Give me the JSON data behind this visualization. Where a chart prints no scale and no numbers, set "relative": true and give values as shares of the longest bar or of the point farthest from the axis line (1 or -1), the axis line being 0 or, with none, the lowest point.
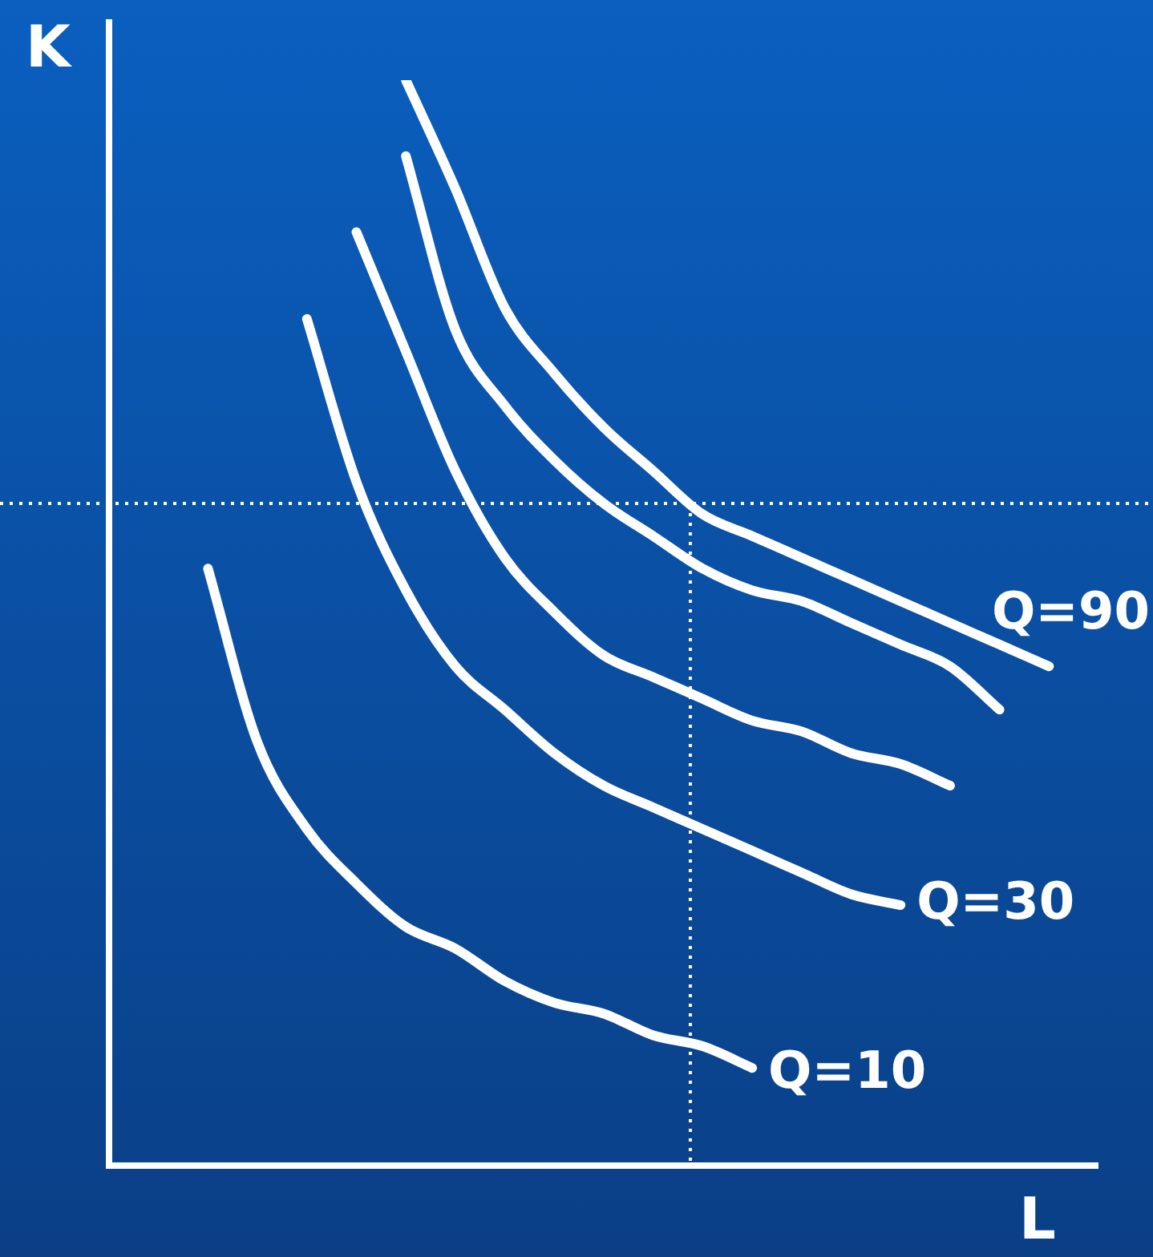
{
  "chart_data": {
    "type": "line",
    "relative": true,
    "xlabel": "L",
    "ylabel": "K",
    "legend": false,
    "marker": "none",
    "line_style": "solid",
    "categories": [
      null,
      null,
      null,
      null,
      null,
      null,
      null,
      null,
      null,
      null,
      null,
      null,
      null,
      null,
      null,
      null,
      null,
      null,
      null,
      null,
      null
    ],
    "series": [
      {
        "name": "Q=10",
        "color": "#ffffff",
        "values": [
          null,
          null,
          0.55,
          0.39,
          0.31,
          0.26,
          0.22,
          0.2,
          0.17,
          0.15,
          0.14,
          0.12,
          0.11,
          0.09,
          null,
          null,
          null,
          null,
          null,
          null,
          null
        ]
      },
      {
        "name": "Q=30",
        "color": "#ffffff",
        "values": [
          null,
          null,
          null,
          null,
          0.78,
          0.63,
          0.53,
          0.46,
          0.42,
          0.38,
          0.35,
          0.33,
          0.31,
          0.29,
          0.27,
          0.25,
          0.24,
          null,
          null,
          null,
          null
        ]
      },
      {
        "color": "#ffffff",
        "values": [
          null,
          null,
          null,
          null,
          null,
          0.86,
          0.75,
          0.64,
          0.56,
          0.51,
          0.47,
          0.45,
          0.43,
          0.41,
          0.4,
          0.38,
          0.37,
          0.35,
          null,
          null,
          null
        ]
      },
      {
        "color": "#ffffff",
        "values": [
          null,
          null,
          null,
          null,
          null,
          null,
          0.93,
          0.77,
          0.7,
          0.65,
          0.61,
          0.58,
          0.55,
          0.53,
          0.52,
          0.5,
          0.48,
          0.46,
          0.42,
          null,
          null
        ]
      },
      {
        "name": "Q=90",
        "color": "#ffffff",
        "values": [
          null,
          null,
          null,
          null,
          null,
          null,
          1,
          0.9,
          0.79,
          0.73,
          0.68,
          0.64,
          0.6,
          0.58,
          0.56,
          0.54,
          0.52,
          0.5,
          0.48,
          0.46,
          null
        ]
      }
    ],
    "ref_lines": [
      {
        "axis": "y",
        "value": 0.61,
        "color": "#ffffff",
        "line_style": "dotted"
      }
    ]
  }
}
